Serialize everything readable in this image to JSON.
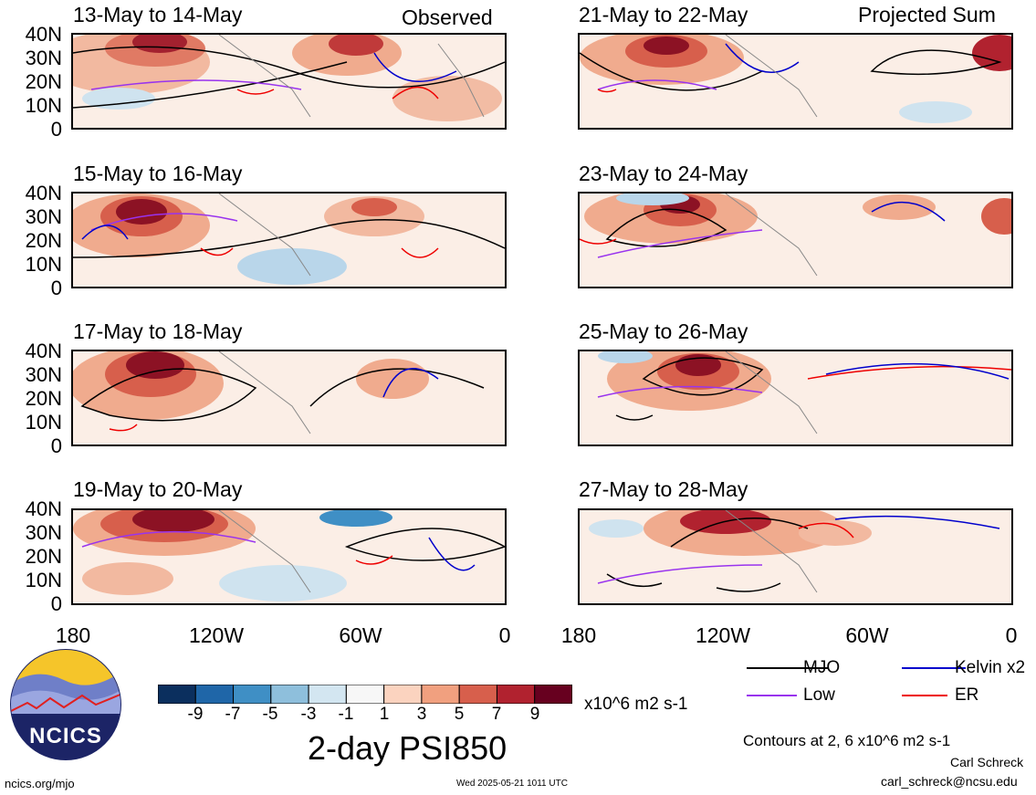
{
  "headers": {
    "observed": "Observed",
    "projected": "Projected Sum"
  },
  "panels": [
    {
      "title": "13-May to 14-May",
      "group": "observed"
    },
    {
      "title": "15-May to 16-May",
      "group": "observed"
    },
    {
      "title": "17-May to 18-May",
      "group": "observed"
    },
    {
      "title": "19-May to 20-May",
      "group": "observed"
    },
    {
      "title": "21-May to 22-May",
      "group": "projected"
    },
    {
      "title": "23-May to 24-May",
      "group": "projected"
    },
    {
      "title": "25-May to 26-May",
      "group": "projected"
    },
    {
      "title": "27-May to 28-May",
      "group": "projected"
    }
  ],
  "lat_labels": [
    "40N",
    "30N",
    "20N",
    "10N",
    "0"
  ],
  "lon_labels": [
    "180",
    "120W",
    "60W",
    "0"
  ],
  "colorbar": {
    "ticks": [
      "-9",
      "-7",
      "-5",
      "-3",
      "-1",
      "1",
      "3",
      "5",
      "7",
      "9"
    ],
    "colors": [
      "#0b2f5e",
      "#1f66a8",
      "#3f8fc5",
      "#8ebfdc",
      "#d3e6f1",
      "#f7f7f7",
      "#fbd3bf",
      "#f1a07f",
      "#d75f4c",
      "#b1222f",
      "#67001f"
    ],
    "units": "x10^6 m2 s-1",
    "title": "2-day PSI850"
  },
  "legend": {
    "items": [
      {
        "label": "MJO",
        "color": "#000000"
      },
      {
        "label": "Kelvin x2",
        "color": "#0000cc"
      },
      {
        "label": "Low",
        "color": "#9933ee"
      },
      {
        "label": "ER",
        "color": "#ee0000"
      }
    ],
    "contour_note": "Contours at 2, 6 x10^6 m2 s-1"
  },
  "footer": {
    "url": "ncics.org/mjo",
    "timestamp": "Wed 2025-05-21 1011 UTC",
    "author": "Carl Schreck",
    "email": "carl_schreck@ncsu.edu",
    "logo_text": "NCICS"
  }
}
